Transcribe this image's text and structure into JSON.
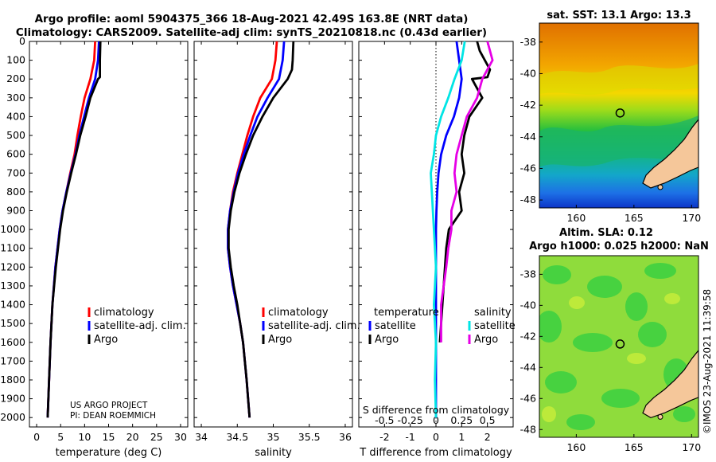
{
  "title_line1": "Argo profile: aoml 5904375_366 18-Aug-2021 42.49S 163.8E (NRT data)",
  "title_line2": "Climatology: CARS2009. Satellite-adj clim: synTS_20210818.nc (0.43d earlier)",
  "colors": {
    "climatology": "#ff0000",
    "satellite_adj": "#0000ff",
    "argo": "#000000",
    "sat_T": "#0000ff",
    "sat_S": "#00e5e5",
    "argo_S": "#e600e6"
  },
  "chart_data": [
    {
      "type": "line",
      "panel": "temperature",
      "xlabel": "temperature (deg C)",
      "xlim": [
        -1.5,
        31.5
      ],
      "xticks": [
        0,
        5,
        10,
        15,
        20,
        25,
        30
      ],
      "ylabel": "",
      "ylim": [
        2050,
        0
      ],
      "yticks": [
        0,
        100,
        200,
        300,
        400,
        500,
        600,
        700,
        800,
        900,
        1000,
        1100,
        1200,
        1300,
        1400,
        1500,
        1600,
        1700,
        1800,
        1900,
        2000
      ],
      "legend": [
        "climatology",
        "satellite-adj. clim.",
        "Argo"
      ],
      "annotation": [
        "US ARGO PROJECT",
        "PI: DEAN ROEMMICH"
      ],
      "series": [
        {
          "name": "climatology",
          "depth": [
            0,
            100,
            200,
            300,
            400,
            500,
            600,
            700,
            800,
            900,
            1000,
            1200,
            1400,
            1600,
            1800,
            2000
          ],
          "values": [
            12.2,
            12.0,
            11.2,
            10.0,
            9.2,
            8.5,
            7.9,
            7.0,
            6.2,
            5.4,
            4.8,
            3.9,
            3.3,
            2.9,
            2.6,
            2.3
          ]
        },
        {
          "name": "satellite-adj. clim.",
          "depth": [
            0,
            100,
            200,
            300,
            400,
            500,
            600,
            700,
            800,
            900,
            1000,
            1200,
            1400,
            1600,
            1800,
            2000
          ],
          "values": [
            13.0,
            12.8,
            12.2,
            10.9,
            9.9,
            8.9,
            8.1,
            7.1,
            6.2,
            5.4,
            4.8,
            3.9,
            3.3,
            2.9,
            2.6,
            2.3
          ]
        },
        {
          "name": "Argo",
          "depth": [
            0,
            100,
            190,
            200,
            300,
            400,
            500,
            600,
            700,
            800,
            900,
            1000,
            1200,
            1400,
            1600,
            1800,
            2000
          ],
          "values": [
            13.3,
            13.2,
            13.2,
            12.8,
            11.2,
            10.2,
            9.1,
            8.2,
            7.2,
            6.3,
            5.5,
            4.9,
            4.0,
            3.3,
            2.9,
            2.6,
            2.3
          ]
        }
      ]
    },
    {
      "type": "line",
      "panel": "salinity",
      "xlabel": "salinity",
      "xlim": [
        33.9,
        36.1
      ],
      "xticks": [
        34,
        34.5,
        35,
        35.5,
        36
      ],
      "ylim": [
        2050,
        0
      ],
      "legend": [
        "climatology",
        "satellite-adj. clim.",
        "Argo"
      ],
      "series": [
        {
          "name": "climatology",
          "depth": [
            0,
            100,
            200,
            300,
            400,
            500,
            600,
            700,
            800,
            900,
            1000,
            1100,
            1200,
            1300,
            1400,
            1500,
            1600,
            1800,
            2000
          ],
          "values": [
            35.05,
            35.03,
            34.98,
            34.82,
            34.72,
            34.64,
            34.57,
            34.5,
            34.44,
            34.4,
            34.37,
            34.37,
            34.4,
            34.44,
            34.49,
            34.54,
            34.58,
            34.63,
            34.67
          ]
        },
        {
          "name": "satellite-adj. clim.",
          "depth": [
            0,
            100,
            200,
            300,
            400,
            500,
            600,
            700,
            800,
            900,
            1000,
            1100,
            1200,
            1300,
            1400,
            1500,
            1600,
            1800,
            2000
          ],
          "values": [
            35.15,
            35.13,
            35.08,
            34.92,
            34.78,
            34.68,
            34.59,
            34.51,
            34.45,
            34.4,
            34.37,
            34.37,
            34.4,
            34.44,
            34.49,
            34.54,
            34.58,
            34.63,
            34.67
          ]
        },
        {
          "name": "Argo",
          "depth": [
            0,
            100,
            150,
            200,
            300,
            400,
            500,
            600,
            700,
            800,
            900,
            1000,
            1100,
            1200,
            1300,
            1400,
            1500,
            1600,
            1800,
            2000
          ],
          "values": [
            35.28,
            35.27,
            35.26,
            35.2,
            35.0,
            34.85,
            34.72,
            34.62,
            34.53,
            34.46,
            34.41,
            34.38,
            34.38,
            34.41,
            34.45,
            34.5,
            34.54,
            34.58,
            34.63,
            34.67
          ]
        }
      ]
    },
    {
      "type": "line",
      "panel": "difference",
      "xlabel": "T difference from climatology",
      "xlim": [
        -3,
        3
      ],
      "xticks": [
        -2,
        -1,
        0,
        1,
        2
      ],
      "xlabel_top": "S difference from climatology",
      "xticks_top": [
        "-0.5",
        "-0.25",
        "0",
        "0.25",
        "0.5"
      ],
      "ylim": [
        2050,
        0
      ],
      "legend_temperature_title": "temperature",
      "legend_salinity_title": "salinity",
      "legend": [
        "satellite",
        "Argo",
        "satellite",
        "Argo"
      ],
      "series": [
        {
          "name": "temperature satellite",
          "depth": [
            0,
            100,
            200,
            300,
            400,
            500,
            600,
            700,
            800,
            900,
            1000,
            1100,
            1200,
            1400,
            1600,
            1800,
            2000
          ],
          "values": [
            0.8,
            0.9,
            1.0,
            0.9,
            0.7,
            0.4,
            0.2,
            0.1,
            0.05,
            0.02,
            0.0,
            0.0,
            0.0,
            0.0,
            0.0,
            0.0,
            0.0
          ]
        },
        {
          "name": "temperature Argo",
          "depth": [
            0,
            50,
            100,
            150,
            190,
            200,
            300,
            400,
            500,
            600,
            700,
            800,
            900,
            1000,
            1100,
            1200,
            1300,
            1400,
            1500,
            1600
          ],
          "values": [
            1.6,
            1.7,
            1.9,
            2.1,
            2.0,
            1.4,
            1.8,
            1.3,
            1.1,
            1.0,
            1.1,
            0.9,
            1.0,
            0.5,
            0.4,
            0.35,
            0.3,
            0.25,
            0.2,
            0.15
          ]
        },
        {
          "name": "salinity satellite",
          "depth": [
            0,
            100,
            200,
            300,
            400,
            500,
            600,
            700,
            800,
            900,
            1000,
            1100,
            1200,
            1400,
            1600,
            1800,
            2000
          ],
          "values": [
            0.28,
            0.25,
            0.18,
            0.12,
            0.05,
            0.0,
            -0.02,
            -0.05,
            -0.04,
            -0.03,
            -0.02,
            -0.01,
            0.0,
            -0.02,
            0.0,
            -0.01,
            0.0
          ]
        },
        {
          "name": "salinity Argo",
          "depth": [
            0,
            100,
            200,
            300,
            400,
            500,
            600,
            700,
            800,
            900,
            1000,
            1100,
            1200,
            1400,
            1600
          ],
          "values": [
            0.5,
            0.55,
            0.45,
            0.4,
            0.3,
            0.25,
            0.2,
            0.18,
            0.2,
            0.15,
            0.15,
            0.12,
            0.1,
            0.05,
            0.05
          ]
        }
      ]
    },
    {
      "type": "heatmap",
      "panel": "sst_map",
      "title": "sat. SST: 13.1 Argo: 13.3",
      "xticks": [
        160,
        165,
        170
      ],
      "yticks": [
        -38,
        -40,
        -42,
        -44,
        -46,
        -48
      ],
      "xlim": [
        156.8,
        170.6
      ],
      "ylim": [
        -48.5,
        -36.8
      ],
      "marker": [
        163.8,
        -42.49
      ]
    },
    {
      "type": "heatmap",
      "panel": "sla_map",
      "title_line1": "Altim. SLA: 0.12",
      "title_line2": "Argo h1000: 0.025 h2000: NaN",
      "xticks": [
        160,
        165,
        170
      ],
      "yticks": [
        -38,
        -40,
        -42,
        -44,
        -46,
        -48
      ],
      "xlim": [
        156.8,
        170.6
      ],
      "ylim": [
        -48.5,
        -36.8
      ],
      "marker": [
        163.8,
        -42.49
      ]
    }
  ],
  "credit": "©IMOS 23-Aug-2021 11:39:58"
}
